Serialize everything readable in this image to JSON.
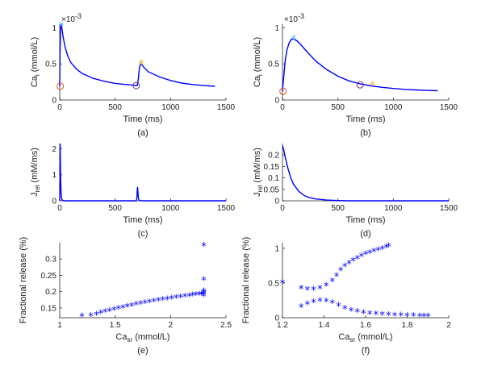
{
  "colors": {
    "line": "#0000FF",
    "axis": "#262626",
    "marker_circle_orange": "#D95319",
    "marker_circle_purple": "#7E2F8E",
    "marker_star_cyan": "#4DBEEE",
    "marker_star_yellow": "#EDB120"
  },
  "chart_data": [
    {
      "id": "a",
      "type": "line",
      "caption": "(a)",
      "xlabel": "Time (ms)",
      "ylabel_main": "Ca",
      "ylabel_sub": "i",
      "ylabel_unit": "(mmol/L)",
      "scale_label": "×10",
      "scale_exp": "-3",
      "xlim": [
        0,
        1500
      ],
      "ylim": [
        0,
        1.05
      ],
      "xticks": [
        0,
        500,
        1000,
        1500
      ],
      "yticks": [
        0,
        0.5,
        1
      ],
      "series": [
        {
          "x": [
            0,
            3,
            8,
            15,
            20,
            30,
            50,
            75,
            100,
            150,
            200,
            300,
            400,
            500,
            600,
            700,
            710,
            715,
            720,
            730,
            740,
            760,
            800,
            900,
            1000,
            1100,
            1200,
            1300,
            1400
          ],
          "y": [
            0.19,
            0.65,
            1.0,
            1.06,
            1.0,
            0.88,
            0.72,
            0.6,
            0.52,
            0.43,
            0.37,
            0.3,
            0.26,
            0.23,
            0.215,
            0.2,
            0.3,
            0.38,
            0.46,
            0.5,
            0.49,
            0.45,
            0.39,
            0.32,
            0.27,
            0.235,
            0.215,
            0.2,
            0.19
          ]
        }
      ],
      "markers": [
        {
          "shape": "circle",
          "color": "orange",
          "x": 5,
          "y": 0.19
        },
        {
          "shape": "star",
          "color": "cyan",
          "x": 15,
          "y": 1.03
        },
        {
          "shape": "circle",
          "color": "purple",
          "x": 690,
          "y": 0.2
        },
        {
          "shape": "star",
          "color": "yellow",
          "x": 735,
          "y": 0.5
        }
      ]
    },
    {
      "id": "b",
      "type": "line",
      "caption": "(b)",
      "xlabel": "Time (ms)",
      "ylabel_main": "Ca",
      "ylabel_sub": "i",
      "ylabel_unit": "(mmol/L)",
      "scale_label": "×10",
      "scale_exp": "-3",
      "xlim": [
        0,
        1500
      ],
      "ylim": [
        0,
        1.05
      ],
      "xticks": [
        0,
        500,
        1000,
        1500
      ],
      "yticks": [
        0,
        0.5,
        1
      ],
      "series": [
        {
          "x": [
            0,
            10,
            25,
            40,
            60,
            80,
            100,
            130,
            170,
            220,
            300,
            400,
            500,
            600,
            700,
            800,
            900,
            1000,
            1100,
            1200,
            1300,
            1400
          ],
          "y": [
            0.12,
            0.3,
            0.55,
            0.69,
            0.79,
            0.84,
            0.845,
            0.82,
            0.76,
            0.67,
            0.54,
            0.42,
            0.33,
            0.265,
            0.225,
            0.195,
            0.175,
            0.16,
            0.148,
            0.14,
            0.133,
            0.128
          ]
        }
      ],
      "markers": [
        {
          "shape": "circle",
          "color": "orange",
          "x": 5,
          "y": 0.12
        },
        {
          "shape": "star",
          "color": "cyan",
          "x": 100,
          "y": 0.845
        },
        {
          "shape": "circle",
          "color": "purple",
          "x": 700,
          "y": 0.21
        },
        {
          "shape": "star",
          "color": "yellow",
          "x": 810,
          "y": 0.2
        }
      ]
    },
    {
      "id": "c",
      "type": "line",
      "caption": "(c)",
      "xlabel": "Time (ms)",
      "ylabel_main": "J",
      "ylabel_sub": "rel",
      "ylabel_unit": "(mM/ms)",
      "xlim": [
        0,
        1500
      ],
      "ylim": [
        0,
        2.2
      ],
      "xticks": [
        0,
        500,
        1000,
        1500
      ],
      "yticks": [
        0,
        1,
        2
      ],
      "series": [
        {
          "x": [
            0,
            2,
            4,
            6,
            9,
            12,
            16,
            20,
            30,
            50,
            690,
            696,
            700,
            703,
            706,
            710,
            715,
            725,
            750,
            1400,
            1460,
            1500
          ],
          "y": [
            0,
            1.2,
            2.2,
            1.6,
            0.8,
            0.35,
            0.12,
            0.05,
            0.01,
            0,
            0,
            0.1,
            0.45,
            0.53,
            0.3,
            0.1,
            0.03,
            0.005,
            0,
            0,
            0,
            0
          ]
        }
      ]
    },
    {
      "id": "d",
      "type": "line",
      "caption": "(d)",
      "xlabel": "Time (ms)",
      "ylabel_main": "J",
      "ylabel_sub": "rel",
      "ylabel_unit": "(mM/ms)",
      "xlim": [
        0,
        1500
      ],
      "ylim": [
        0,
        0.25
      ],
      "xticks": [
        0,
        500,
        1000,
        1500
      ],
      "yticks": [
        0,
        0.05,
        0.1,
        0.15,
        0.2
      ],
      "series": [
        {
          "x": [
            0,
            10,
            25,
            50,
            75,
            100,
            150,
            200,
            250,
            300,
            400,
            500,
            600,
            800,
            1000,
            1200,
            1500
          ],
          "y": [
            0.24,
            0.225,
            0.19,
            0.14,
            0.1,
            0.072,
            0.04,
            0.022,
            0.013,
            0.008,
            0.003,
            0.001,
            0,
            0,
            0,
            0,
            0
          ]
        }
      ]
    },
    {
      "id": "e",
      "type": "scatter",
      "caption": "(e)",
      "xlabel_main": "Ca",
      "xlabel_sub": "sr",
      "xlabel_unit": "(mmol/L)",
      "ylabel": "Fractional release (%)",
      "xlim": [
        1,
        2.5
      ],
      "ylim": [
        0.12,
        0.35
      ],
      "xticks": [
        1,
        1.5,
        2,
        2.5
      ],
      "yticks": [
        0.15,
        0.2,
        0.25,
        0.3
      ],
      "series": [
        {
          "x": [
            1.2,
            1.28,
            1.33,
            1.37,
            1.41,
            1.45,
            1.49,
            1.53,
            1.57,
            1.61,
            1.65,
            1.69,
            1.73,
            1.77,
            1.81,
            1.85,
            1.89,
            1.93,
            1.97,
            2.01,
            2.05,
            2.09,
            2.13,
            2.17,
            2.2,
            2.23,
            2.26,
            2.28,
            2.3,
            2.3,
            2.3,
            2.3,
            2.3,
            2.3
          ],
          "y": [
            0.124,
            0.125,
            0.129,
            0.133,
            0.137,
            0.14,
            0.143,
            0.147,
            0.15,
            0.153,
            0.156,
            0.159,
            0.162,
            0.164,
            0.167,
            0.17,
            0.172,
            0.174,
            0.176,
            0.178,
            0.18,
            0.182,
            0.184,
            0.186,
            0.188,
            0.189,
            0.19,
            0.191,
            0.192,
            0.185,
            0.195,
            0.2,
            0.235,
            0.34
          ]
        }
      ]
    },
    {
      "id": "f",
      "type": "scatter",
      "caption": "(f)",
      "xlabel_main": "Ca",
      "xlabel_sub": "sr",
      "xlabel_unit": "(mmol/L)",
      "ylabel": "Fractional release (%)",
      "xlim": [
        1.2,
        2
      ],
      "ylim": [
        0,
        1.08
      ],
      "xticks": [
        1.2,
        1.4,
        1.6,
        1.8,
        2
      ],
      "yticks": [
        0,
        0.5,
        1
      ],
      "series": [
        {
          "name": "",
          "x": [
            1.2,
            1.29,
            1.32,
            1.35,
            1.38,
            1.41,
            1.44,
            1.46,
            1.48,
            1.5,
            1.52,
            1.54,
            1.56,
            1.58,
            1.6,
            1.62,
            1.64,
            1.66,
            1.68,
            1.7,
            1.71
          ],
          "y": [
            0.5,
            0.42,
            0.4,
            0.4,
            0.42,
            0.46,
            0.52,
            0.6,
            0.68,
            0.74,
            0.78,
            0.82,
            0.85,
            0.88,
            0.91,
            0.93,
            0.95,
            0.97,
            0.99,
            1.01,
            1.03
          ]
        },
        {
          "name": "",
          "x": [
            1.29,
            1.32,
            1.35,
            1.38,
            1.41,
            1.44,
            1.47,
            1.5,
            1.53,
            1.56,
            1.59,
            1.62,
            1.65,
            1.68,
            1.71,
            1.74,
            1.77,
            1.8,
            1.83,
            1.86,
            1.88,
            1.9
          ],
          "y": [
            0.15,
            0.19,
            0.22,
            0.24,
            0.23,
            0.21,
            0.17,
            0.13,
            0.1,
            0.08,
            0.065,
            0.05,
            0.045,
            0.04,
            0.035,
            0.03,
            0.028,
            0.025,
            0.022,
            0.02,
            0.02,
            0.018
          ]
        }
      ]
    }
  ]
}
